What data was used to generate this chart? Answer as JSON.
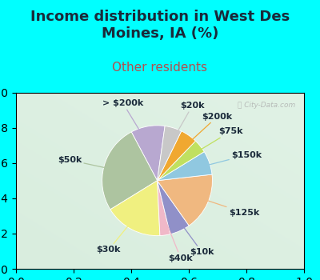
{
  "title": "Income distribution in West Des\nMoines, IA (%)",
  "subtitle": "Other residents",
  "watermark": "ⓘ City-Data.com",
  "background_cyan": "#00FFFF",
  "background_chart": "#d8ede4",
  "labels": [
    "> $200k",
    "$50k",
    "$30k",
    "$40k",
    "$10k",
    "$125k",
    "$150k",
    "$75k",
    "$200k",
    "$20k"
  ],
  "values": [
    10,
    26,
    17,
    3,
    6,
    17,
    7,
    4,
    5,
    5
  ],
  "colors": [
    "#b8a8d0",
    "#adc4a0",
    "#f0f080",
    "#f0b8c8",
    "#9090c8",
    "#f0b880",
    "#90c8e0",
    "#c0e060",
    "#f0a830",
    "#c8c8c8"
  ],
  "startangle": 82,
  "title_color": "#1a2a3a",
  "subtitle_color": "#b05050",
  "title_fontsize": 13,
  "subtitle_fontsize": 11,
  "label_fontsize": 8,
  "label_color": "#1a2a3a"
}
